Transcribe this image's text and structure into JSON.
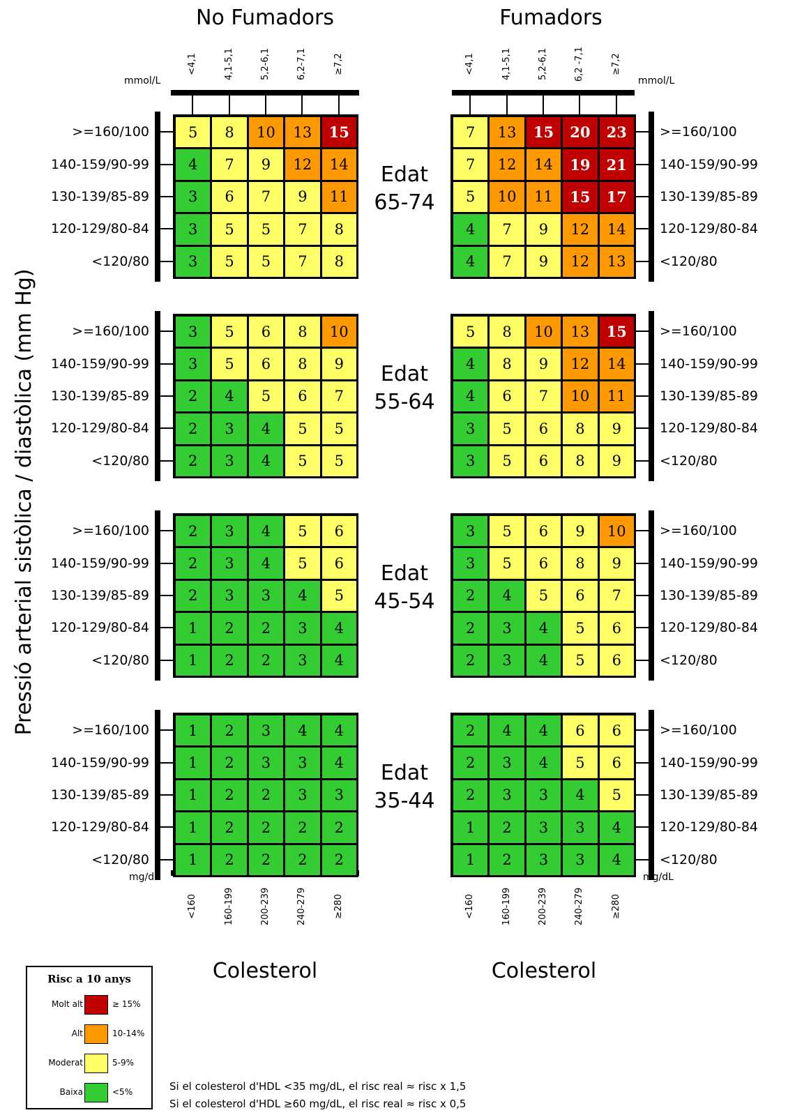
{
  "panels": [
    {
      "key": "no_smoker",
      "title": "No Fumadors"
    },
    {
      "key": "smoker",
      "title": "Fumadors"
    }
  ],
  "chol_mmol": [
    "<4,1",
    "4,1-5,1",
    "5,2-6,1",
    "6,2-7,1",
    "≥7,2"
  ],
  "chol_mmol_smoker": [
    "<4,1",
    "4,1-5,1",
    "5,2-6,1",
    "6,2 -7,1",
    "≥7,2"
  ],
  "chol_mgdl": [
    "<160",
    "160-199",
    "200-239",
    "240-279",
    "≥280"
  ],
  "units": {
    "mmol": "mmol/L",
    "mgdl": "mg/dL"
  },
  "bp_rows": [
    ">=160/100",
    "140-159/90-99",
    "130-139/85-89",
    "120-129/80-84",
    "<120/80"
  ],
  "bp_rows_right": [
    ">=160/100",
    "140-159/90-99",
    "130-139/85-89",
    "120-129/80-84",
    "<120/80"
  ],
  "y_axis_label": "Pressió arterial sistòlica / diastòlica (mm Hg)",
  "x_axis_label": "Colesterol",
  "ages": [
    {
      "label1": "Edat",
      "label2": "65-74"
    },
    {
      "label1": "Edat",
      "label2": "55-64"
    },
    {
      "label1": "Edat",
      "label2": "45-54"
    },
    {
      "label1": "Edat",
      "label2": "35-44"
    }
  ],
  "legend": {
    "title": "Risc a 10 anys",
    "items": [
      {
        "label": "Molt alt",
        "range": "≥ 15%",
        "color": "#c00000"
      },
      {
        "label": "Alt",
        "range": "10-14%",
        "color": "#ff9900"
      },
      {
        "label": "Moderat",
        "range": "5-9%",
        "color": "#ffff66"
      },
      {
        "label": "Baixa",
        "range": "<5%",
        "color": "#33cc33"
      }
    ]
  },
  "notes": [
    "Si el colesterol d'HDL <35 mg/dL, el risc real ≈ risc x 1,5",
    "Si el colesterol d'HDL ≥60 mg/dL, el risc real ≈ risc x 0,5"
  ],
  "chart_data": {
    "type": "heatmap",
    "title": "",
    "xlabel": "Colesterol",
    "ylabel": "Pressió arterial sistòlica / diastòlica (mm Hg)",
    "categories_x": [
      "<4,1 (<160)",
      "4,1-5,1 (160-199)",
      "5,2-6,1 (200-239)",
      "6,2-7,1 (240-279)",
      "≥7,2 (≥280)"
    ],
    "categories_y": [
      ">=160/100",
      "140-159/90-99",
      "130-139/85-89",
      "120-129/80-84",
      "<120/80"
    ],
    "color_scale": [
      {
        "min": 0,
        "max": 4,
        "color": "#33cc33"
      },
      {
        "min": 5,
        "max": 9,
        "color": "#ffff66"
      },
      {
        "min": 10,
        "max": 14,
        "color": "#ff9900"
      },
      {
        "min": 15,
        "max": 100,
        "color": "#c00000"
      }
    ],
    "grids": {
      "no_smoker": [
        [
          [
            5,
            8,
            10,
            13,
            15
          ],
          [
            4,
            7,
            9,
            12,
            14
          ],
          [
            3,
            6,
            7,
            9,
            11
          ],
          [
            3,
            5,
            5,
            7,
            8
          ],
          [
            3,
            5,
            5,
            7,
            8
          ]
        ],
        [
          [
            3,
            5,
            6,
            8,
            10
          ],
          [
            3,
            5,
            6,
            8,
            9
          ],
          [
            2,
            4,
            5,
            6,
            7
          ],
          [
            2,
            3,
            4,
            5,
            5
          ],
          [
            2,
            3,
            4,
            5,
            5
          ]
        ],
        [
          [
            2,
            3,
            4,
            5,
            6
          ],
          [
            2,
            3,
            4,
            5,
            6
          ],
          [
            2,
            3,
            3,
            4,
            5
          ],
          [
            1,
            2,
            2,
            3,
            4
          ],
          [
            1,
            2,
            2,
            3,
            4
          ]
        ],
        [
          [
            1,
            2,
            3,
            4,
            4
          ],
          [
            1,
            2,
            3,
            3,
            4
          ],
          [
            1,
            2,
            2,
            3,
            3
          ],
          [
            1,
            2,
            2,
            2,
            2
          ],
          [
            1,
            2,
            2,
            2,
            2
          ]
        ]
      ],
      "smoker": [
        [
          [
            7,
            13,
            15,
            20,
            23
          ],
          [
            7,
            12,
            14,
            19,
            21
          ],
          [
            5,
            10,
            11,
            15,
            17
          ],
          [
            4,
            7,
            9,
            12,
            14
          ],
          [
            4,
            7,
            9,
            12,
            13
          ]
        ],
        [
          [
            5,
            8,
            10,
            13,
            15
          ],
          [
            4,
            8,
            9,
            12,
            14
          ],
          [
            4,
            6,
            7,
            10,
            11
          ],
          [
            3,
            5,
            6,
            8,
            9
          ],
          [
            3,
            5,
            6,
            8,
            9
          ]
        ],
        [
          [
            3,
            5,
            6,
            9,
            10
          ],
          [
            3,
            5,
            6,
            8,
            9
          ],
          [
            2,
            4,
            5,
            6,
            7
          ],
          [
            2,
            3,
            4,
            5,
            6
          ],
          [
            2,
            3,
            4,
            5,
            6
          ]
        ],
        [
          [
            2,
            4,
            4,
            6,
            6
          ],
          [
            2,
            3,
            4,
            5,
            6
          ],
          [
            2,
            3,
            3,
            4,
            5
          ],
          [
            1,
            2,
            3,
            3,
            4
          ],
          [
            1,
            2,
            3,
            3,
            4
          ]
        ]
      ]
    },
    "age_groups": [
      "65-74",
      "55-64",
      "45-54",
      "35-44"
    ]
  }
}
